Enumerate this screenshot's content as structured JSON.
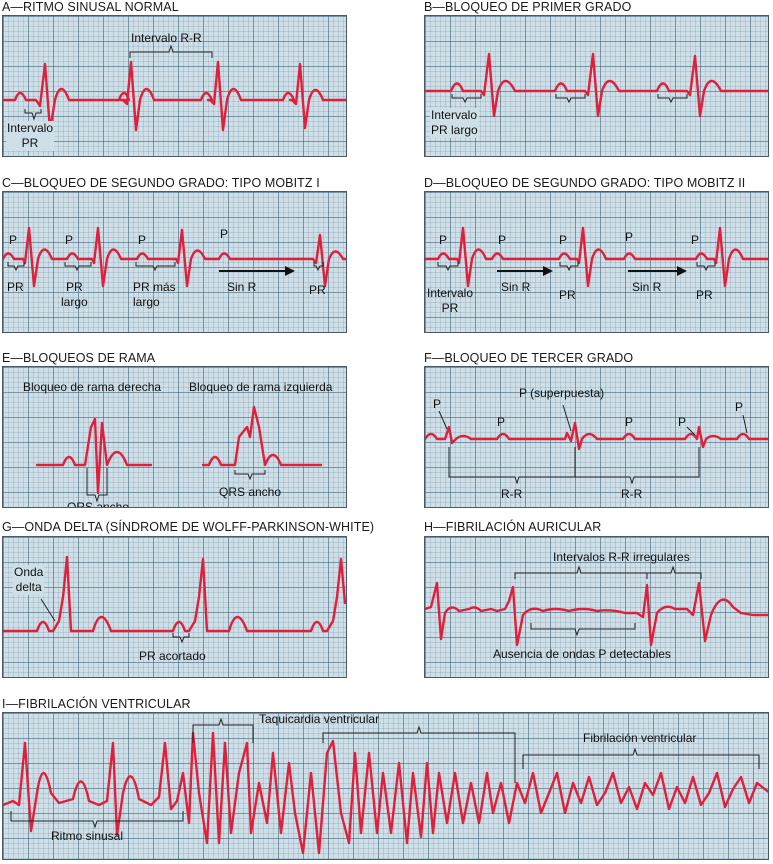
{
  "panels": {
    "a": {
      "title": "A—RITMO SINUSAL NORMAL",
      "rr": "Intervalo R-R",
      "pr": "Intervalo\nPR"
    },
    "b": {
      "title": "B—BLOQUEO DE PRIMER GRADO",
      "pr": "Intervalo\nPR largo"
    },
    "c": {
      "title": "C—BLOQUEO DE SEGUNDO GRADO: TIPO MOBITZ I",
      "p": "P",
      "pr": "PR",
      "pr_long": "PR\nlargo",
      "pr_longer": "PR más\nlargo",
      "no_r": "Sin R"
    },
    "d": {
      "title": "D—BLOQUEO DE SEGUNDO GRADO: TIPO MOBITZ II",
      "p": "P",
      "pr_interval": "Intervalo\nPR",
      "pr": "PR",
      "no_r": "Sin R"
    },
    "e": {
      "title": "E—BLOQUEOS DE RAMA",
      "right": "Bloqueo de rama derecha",
      "left": "Bloqueo de rama izquierda",
      "qrs": "QRS ancho"
    },
    "f": {
      "title": "F—BLOQUEO DE TERCER GRADO",
      "p": "P",
      "p_super": "P (superpuesta)",
      "rr": "R-R"
    },
    "g": {
      "title": "G—ONDA DELTA (SÍNDROME DE WOLFF-PARKINSON-WHITE)",
      "delta": "Onda\ndelta",
      "pr_short": "PR acortado"
    },
    "h": {
      "title": "H—FIBRILACIÓN AURICULAR",
      "rr_irregular": "Intervalos R-R irregulares",
      "no_p": "Ausencia de ondas P detectables"
    },
    "i": {
      "title": "I—FIBRILACIÓN VENTRICULAR",
      "vt": "Taquicardia ventricular",
      "vf": "Fibrilación ventricular",
      "sinus": "Ritmo sinusal"
    }
  },
  "colors": {
    "trace": "#e0203a",
    "grid_bg": "#cfdfe8",
    "grid_line": "#46697d",
    "ink": "#111111"
  }
}
